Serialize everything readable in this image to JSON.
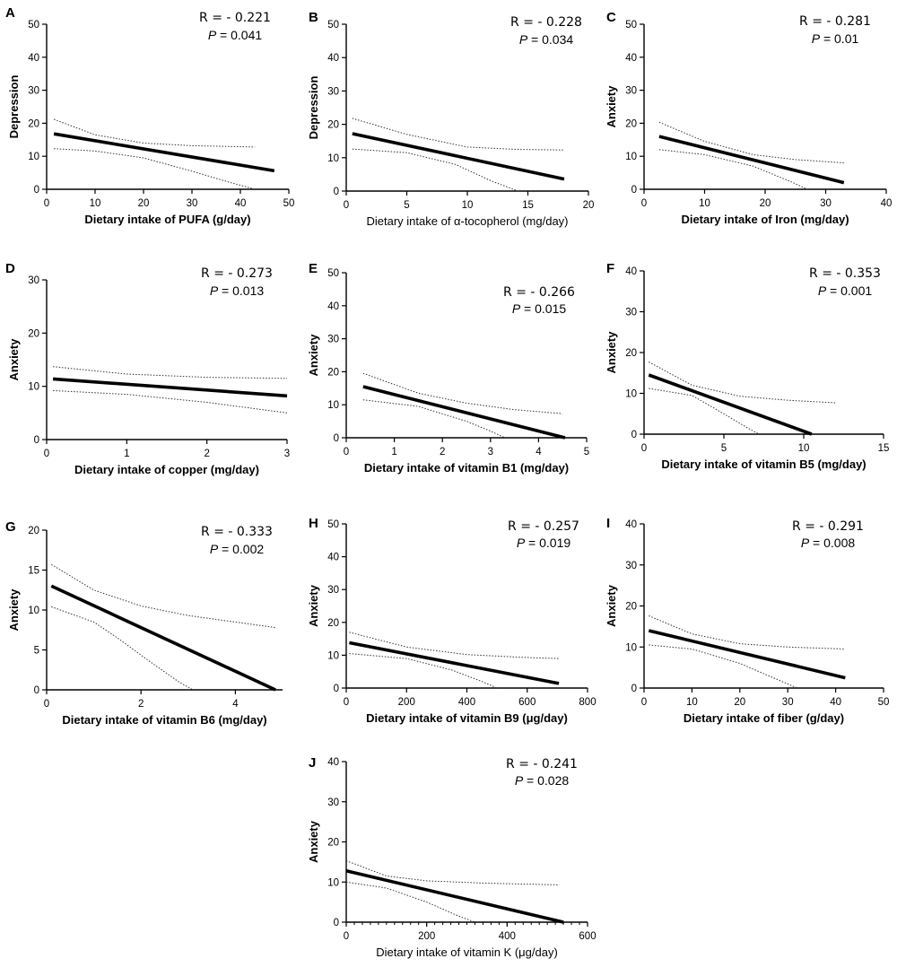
{
  "chart_data": [
    {
      "panel": "A",
      "type": "line",
      "xlabel": "Dietary intake of PUFA (g/day)",
      "ylabel": "Depression",
      "xlim": [
        0,
        50
      ],
      "ylim": [
        0,
        50
      ],
      "xticks": [
        "0",
        "10",
        "20",
        "30",
        "40",
        "50"
      ],
      "yticks": [
        "0",
        "10",
        "20",
        "30",
        "40",
        "50"
      ],
      "r_text": "R = - 0.221",
      "p_label": "P",
      "p_value": " = 0.041",
      "fit": {
        "x": [
          1.5,
          47
        ],
        "y": [
          16.8,
          5.6
        ]
      },
      "ci_upper": {
        "x": [
          1.5,
          10,
          20,
          30,
          43
        ],
        "y": [
          21.2,
          16.5,
          14.0,
          13.2,
          12.8
        ]
      },
      "ci_lower": {
        "x": [
          1.5,
          10,
          20,
          30,
          38,
          43
        ],
        "y": [
          12.3,
          11.6,
          9.5,
          5.5,
          2.0,
          0
        ]
      }
    },
    {
      "panel": "B",
      "type": "line",
      "xlabel": "Dietary intake of α-tocopherol (mg/day)",
      "ylabel": "Depression",
      "xlim": [
        0,
        20
      ],
      "ylim": [
        0,
        50
      ],
      "xticks": [
        "0",
        "5",
        "10",
        "15",
        "20"
      ],
      "yticks": [
        "0",
        "10",
        "20",
        "30",
        "40",
        "50"
      ],
      "r_text": "R = - 0.228",
      "p_label": "P",
      "p_value": " = 0.034",
      "fit": {
        "x": [
          0.5,
          18
        ],
        "y": [
          17.2,
          3.6
        ]
      },
      "ci_upper": {
        "x": [
          0.5,
          5,
          10,
          14,
          18
        ],
        "y": [
          21.8,
          17.0,
          13.2,
          12.5,
          12.3
        ]
      },
      "ci_lower": {
        "x": [
          0.5,
          5,
          9,
          12,
          14.2
        ],
        "y": [
          12.6,
          11.5,
          8.0,
          3.0,
          0
        ]
      }
    },
    {
      "panel": "C",
      "type": "line",
      "xlabel": "Dietary intake of Iron (mg/day)",
      "ylabel": "Anxiety",
      "xlim": [
        0,
        40
      ],
      "ylim": [
        0,
        50
      ],
      "xticks": [
        "0",
        "10",
        "20",
        "30",
        "40"
      ],
      "yticks": [
        "0",
        "10",
        "20",
        "30",
        "40",
        "50"
      ],
      "r_text": "R = - 0.281",
      "p_label": "P",
      "p_value": " = 0.01",
      "fit": {
        "x": [
          2.5,
          33
        ],
        "y": [
          16.0,
          2.0
        ]
      },
      "ci_upper": {
        "x": [
          2.5,
          10,
          18,
          25,
          33
        ],
        "y": [
          20.3,
          14.5,
          10.5,
          9.0,
          8.0
        ]
      },
      "ci_lower": {
        "x": [
          2.5,
          10,
          18,
          24,
          27
        ],
        "y": [
          12.0,
          10.5,
          7.0,
          2.5,
          0
        ]
      }
    },
    {
      "panel": "D",
      "type": "line",
      "xlabel": "Dietary intake of copper (mg/day)",
      "ylabel": "Anxiety",
      "xlim": [
        0,
        3
      ],
      "ylim": [
        0,
        30
      ],
      "xticks": [
        "0",
        "1",
        "2",
        "3"
      ],
      "yticks": [
        "0",
        "10",
        "20",
        "30"
      ],
      "r_text": "R = - 0.273",
      "p_label": "P",
      "p_value": " = 0.013",
      "fit": {
        "x": [
          0.08,
          3
        ],
        "y": [
          11.4,
          8.2
        ]
      },
      "ci_upper": {
        "x": [
          0.08,
          1,
          2,
          3
        ],
        "y": [
          13.7,
          12.3,
          11.7,
          11.5
        ]
      },
      "ci_lower": {
        "x": [
          0.08,
          1,
          2,
          3
        ],
        "y": [
          9.2,
          8.5,
          7.0,
          5.0
        ]
      }
    },
    {
      "panel": "E",
      "type": "line",
      "xlabel": "Dietary intake of vitamin B1 (mg/day)",
      "ylabel": "Anxiety",
      "xlim": [
        0,
        5
      ],
      "ylim": [
        0,
        50
      ],
      "xticks": [
        "0",
        "1",
        "2",
        "3",
        "4",
        "5"
      ],
      "yticks": [
        "0",
        "10",
        "20",
        "30",
        "40",
        "50"
      ],
      "r_text": "R = - 0.266",
      "p_label": "P",
      "p_value": " = 0.015",
      "fit": {
        "x": [
          0.35,
          4.55
        ],
        "y": [
          15.5,
          0
        ]
      },
      "ci_upper": {
        "x": [
          0.35,
          1.5,
          2.5,
          3.5,
          4.5
        ],
        "y": [
          19.5,
          13.5,
          10.5,
          8.5,
          7.3
        ]
      },
      "ci_lower": {
        "x": [
          0.35,
          1.5,
          2.5,
          3.0,
          3.3
        ],
        "y": [
          11.5,
          9.5,
          5.0,
          2.0,
          0
        ]
      }
    },
    {
      "panel": "F",
      "type": "line",
      "xlabel": "Dietary intake of vitamin B5 (mg/day)",
      "ylabel": "Anxiety",
      "xlim": [
        0,
        15
      ],
      "ylim": [
        0,
        40
      ],
      "xticks": [
        "0",
        "5",
        "10",
        "15"
      ],
      "yticks": [
        "0",
        "10",
        "20",
        "30",
        "40"
      ],
      "r_text": "R = - 0.353",
      "p_label": "P",
      "p_value": " = 0.001",
      "fit": {
        "x": [
          0.3,
          10.5
        ],
        "y": [
          14.5,
          0
        ]
      },
      "ci_upper": {
        "x": [
          0.3,
          3,
          6,
          9,
          12
        ],
        "y": [
          17.7,
          12.0,
          9.3,
          8.3,
          7.7
        ]
      },
      "ci_lower": {
        "x": [
          0.3,
          3,
          5,
          6.5,
          7.2
        ],
        "y": [
          11.2,
          9.5,
          5.0,
          1.5,
          0
        ]
      }
    },
    {
      "panel": "G",
      "type": "line",
      "xlabel": "Dietary intake of vitamin B6 (mg/day)",
      "ylabel": "Anxiety",
      "xlim": [
        0,
        5
      ],
      "ylim": [
        0,
        20
      ],
      "xticks": [
        "0",
        "2",
        "4"
      ],
      "yticks": [
        "0",
        "5",
        "10",
        "15",
        "20"
      ],
      "r_text": "R = - 0.333",
      "p_label": "P",
      "p_value": " = 0.002",
      "fit": {
        "x": [
          0.1,
          4.85
        ],
        "y": [
          13.0,
          0
        ]
      },
      "ci_upper": {
        "x": [
          0.1,
          1,
          2,
          3,
          4,
          4.85
        ],
        "y": [
          15.7,
          12.5,
          10.5,
          9.3,
          8.5,
          7.8
        ]
      },
      "ci_lower": {
        "x": [
          0.1,
          1,
          1.5,
          2.2,
          2.8,
          3.1
        ],
        "y": [
          10.4,
          8.5,
          6.5,
          3.5,
          1.0,
          0
        ]
      }
    },
    {
      "panel": "H",
      "type": "line",
      "xlabel": "Dietary intake of vitamin B9 (μg/day)",
      "ylabel": "Anxiety",
      "xlim": [
        0,
        800
      ],
      "ylim": [
        0,
        50
      ],
      "xticks": [
        "0",
        "200",
        "400",
        "600",
        "800"
      ],
      "yticks": [
        "0",
        "10",
        "20",
        "30",
        "40",
        "50"
      ],
      "r_text": "R = - 0.257",
      "p_label": "P",
      "p_value": " = 0.019",
      "fit": {
        "x": [
          10,
          705
        ],
        "y": [
          13.8,
          1.4
        ]
      },
      "ci_upper": {
        "x": [
          10,
          200,
          400,
          600,
          705
        ],
        "y": [
          17.0,
          12.5,
          10.2,
          9.3,
          9.0
        ]
      },
      "ci_lower": {
        "x": [
          10,
          200,
          350,
          450,
          500
        ],
        "y": [
          10.5,
          9.0,
          5.5,
          2.0,
          0
        ]
      }
    },
    {
      "panel": "I",
      "type": "line",
      "xlabel": "Dietary intake of fiber (g/day)",
      "ylabel": "Anxiety",
      "xlim": [
        0,
        50
      ],
      "ylim": [
        0,
        40
      ],
      "xticks": [
        "0",
        "10",
        "20",
        "30",
        "40",
        "50"
      ],
      "yticks": [
        "0",
        "10",
        "20",
        "30",
        "40"
      ],
      "r_text": "R = - 0.291",
      "p_label": "P",
      "p_value": " = 0.008",
      "fit": {
        "x": [
          1,
          42
        ],
        "y": [
          14.0,
          2.5
        ]
      },
      "ci_upper": {
        "x": [
          1,
          10,
          20,
          30,
          42
        ],
        "y": [
          17.6,
          13.2,
          10.8,
          10.0,
          9.5
        ]
      },
      "ci_lower": {
        "x": [
          1,
          10,
          20,
          28,
          32
        ],
        "y": [
          10.5,
          9.5,
          6.0,
          2.0,
          0
        ]
      }
    },
    {
      "panel": "J",
      "type": "line",
      "xlabel": "Dietary intake of vitamin K (μg/day)",
      "ylabel": "Anxiety",
      "xlim": [
        0,
        600
      ],
      "ylim": [
        0,
        40
      ],
      "xticks": [
        "0",
        "200",
        "400",
        "600"
      ],
      "yticks": [
        "0",
        "10",
        "20",
        "30",
        "40"
      ],
      "r_text": "R = - 0.241",
      "p_label": "P",
      "p_value": " = 0.028",
      "fit": {
        "x": [
          0,
          540
        ],
        "y": [
          12.8,
          0
        ]
      },
      "ci_upper": {
        "x": [
          0,
          100,
          200,
          350,
          530
        ],
        "y": [
          15.3,
          11.5,
          10.3,
          9.7,
          9.3
        ]
      },
      "ci_lower": {
        "x": [
          0,
          100,
          200,
          280,
          320
        ],
        "y": [
          10.0,
          8.5,
          5.0,
          1.5,
          0
        ]
      }
    }
  ]
}
